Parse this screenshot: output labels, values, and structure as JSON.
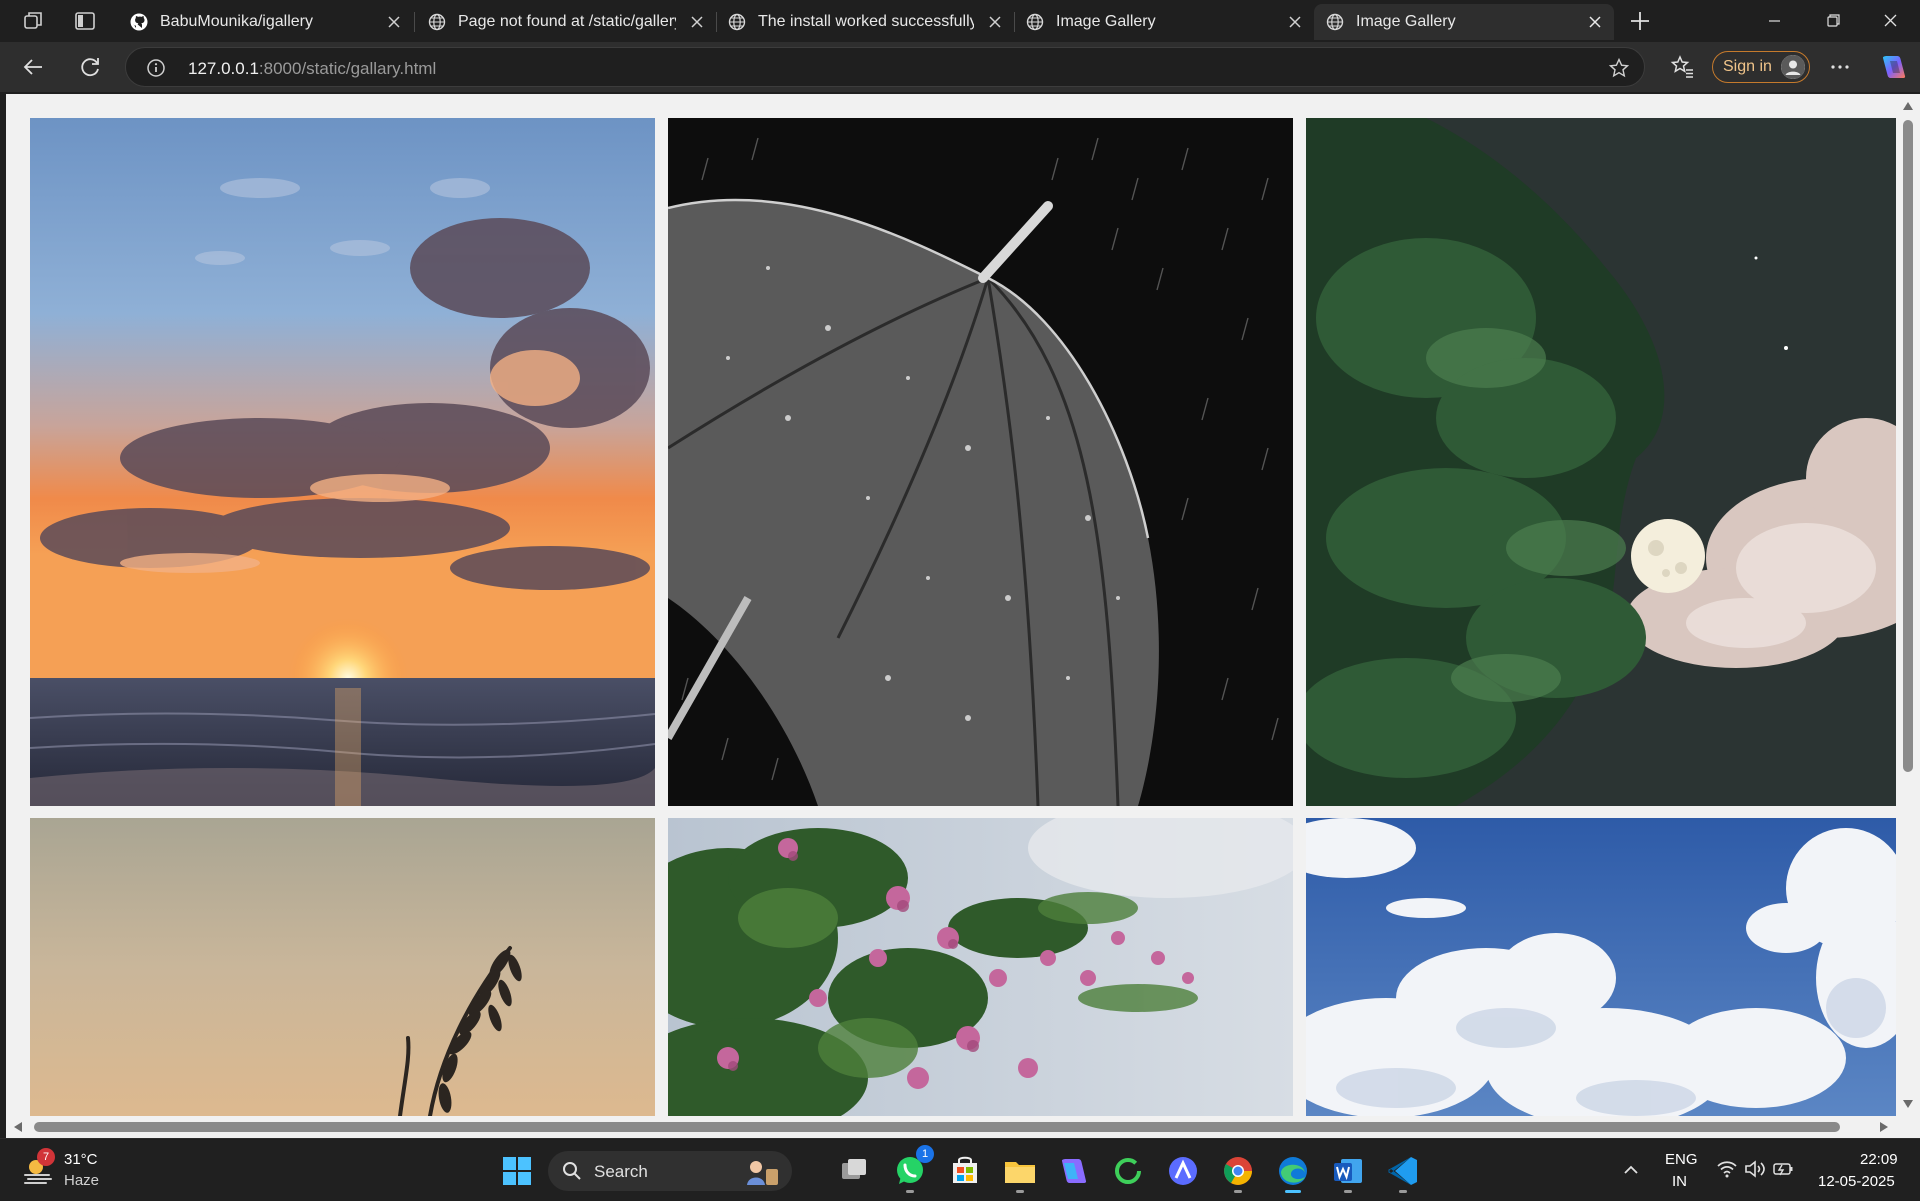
{
  "browser": {
    "tabs": [
      {
        "title": "BabuMounika/igallery",
        "icon": "github-icon",
        "active": false
      },
      {
        "title": "Page not found at /static/gallery.h",
        "icon": "globe-icon",
        "active": false
      },
      {
        "title": "The install worked successfully! Co",
        "icon": "globe-icon",
        "active": false
      },
      {
        "title": "Image Gallery",
        "icon": "globe-icon",
        "active": false
      },
      {
        "title": "Image Gallery",
        "icon": "globe-icon",
        "active": true
      }
    ],
    "address": {
      "host": "127.0.0.1",
      "path": ":8000/static/gallary.html"
    },
    "sign_in_label": "Sign in"
  },
  "gallery": {
    "photos": [
      {
        "name": "sunset-over-sea",
        "icon": "photo-sunset"
      },
      {
        "name": "umbrella-in-rain",
        "icon": "photo-umbrella"
      },
      {
        "name": "moon-and-trees",
        "icon": "photo-moon"
      },
      {
        "name": "grass-silhouette",
        "icon": "photo-grass"
      },
      {
        "name": "bougainvillea-flowers",
        "icon": "photo-flowers"
      },
      {
        "name": "blue-sky-clouds",
        "icon": "photo-clouds"
      }
    ]
  },
  "taskbar": {
    "weather": {
      "temp": "31°C",
      "desc": "Haze",
      "badge": "7"
    },
    "search_label": "Search",
    "whatsapp_badge": "1",
    "language": {
      "line1": "ENG",
      "line2": "IN"
    },
    "clock": {
      "time": "22:09",
      "date": "12-05-2025"
    }
  },
  "colors": {
    "accent": "#4cc2ff",
    "sign_in_border": "#c57a2c",
    "page_background": "#f1f1f1"
  }
}
